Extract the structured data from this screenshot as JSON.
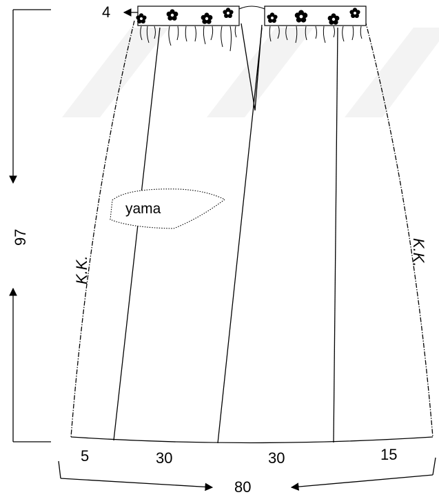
{
  "dimensions": {
    "waistband_height": "4",
    "length": "97",
    "hem_total": "80",
    "hem_segments": [
      "5",
      "30",
      "30",
      "15"
    ]
  },
  "labels": {
    "pocket": "yama",
    "side_seam_left": "K.K.",
    "side_seam_right": "K.K."
  },
  "colors": {
    "line": "#000000",
    "background": "#ffffff",
    "watermark": "#f3f3f3"
  }
}
